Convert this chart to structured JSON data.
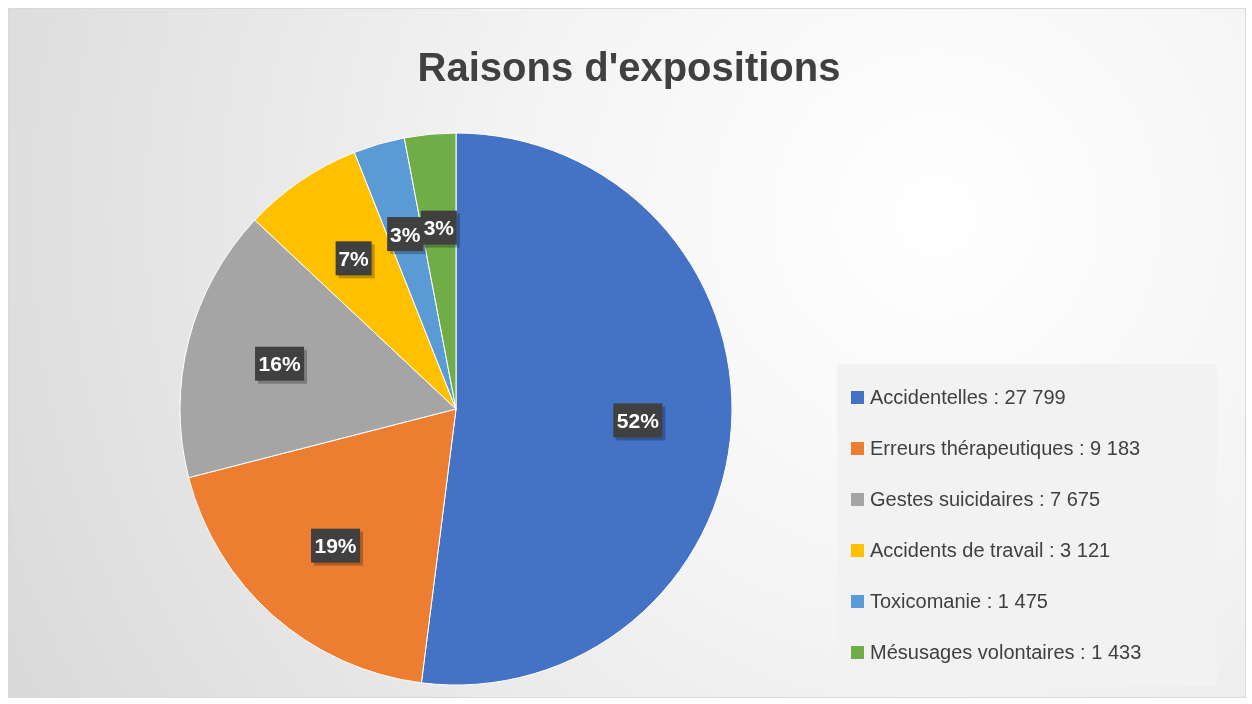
{
  "chart_data": {
    "type": "pie",
    "title": "Raisons d'expositions",
    "categories": [
      "Accidentelles : 27 799",
      "Erreurs thérapeutiques : 9 183",
      "Gestes suicidaires : 7 675",
      "Accidents de travail : 3 121",
      "Toxicomanie : 1 475",
      "Mésusages volontaires : 1 433"
    ],
    "values": [
      52,
      19,
      16,
      7,
      3,
      3
    ],
    "value_labels": [
      "52%",
      "19%",
      "16%",
      "7%",
      "3%",
      "3%"
    ],
    "colors": [
      "#4472c4",
      "#ed7d31",
      "#a5a5a5",
      "#ffc000",
      "#5b9bd5",
      "#70ad47"
    ],
    "legend": "right"
  }
}
